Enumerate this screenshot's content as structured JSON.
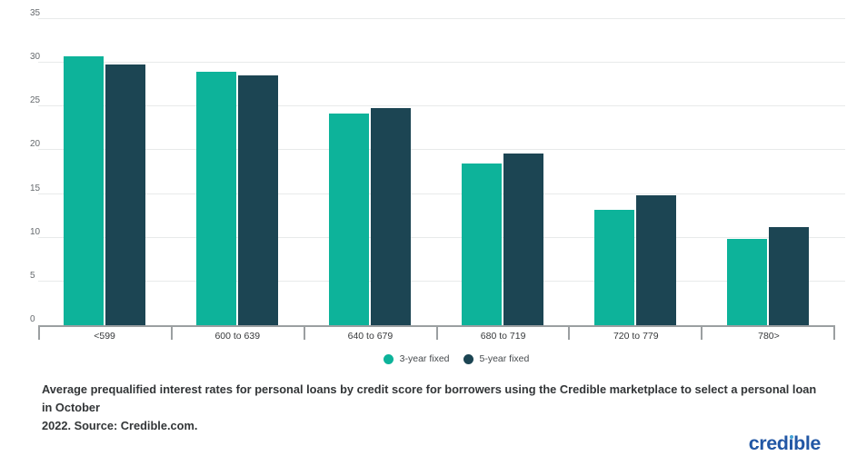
{
  "chart_data": {
    "type": "bar",
    "title": "",
    "categories": [
      "<599",
      "600 to 639",
      "640 to 679",
      "680 to 719",
      "720 to 779",
      "780>"
    ],
    "series": [
      {
        "name": "3-year fixed",
        "color": "#0db39a",
        "values": [
          30.7,
          29.0,
          24.2,
          18.5,
          13.2,
          9.9
        ]
      },
      {
        "name": "5-year fixed",
        "color": "#1c4553",
        "values": [
          29.8,
          28.6,
          24.8,
          19.6,
          14.9,
          11.2
        ]
      }
    ],
    "xlabel": "",
    "ylabel": "",
    "ylim": [
      0,
      35
    ],
    "y_ticks": [
      0,
      5,
      10,
      15,
      20,
      25,
      30,
      35
    ],
    "grid": true,
    "legend_position": "bottom"
  },
  "caption": {
    "line1": "Average prequalified interest rates for personal loans by credit score for borrowers using the Credible marketplace to select a personal loan in October",
    "line2": "2022. Source: Credible.com."
  },
  "logo": {
    "part1": "cred",
    "part2": "ble",
    "brand_color": "#2257a5",
    "dot_color": "#44a3d5"
  }
}
